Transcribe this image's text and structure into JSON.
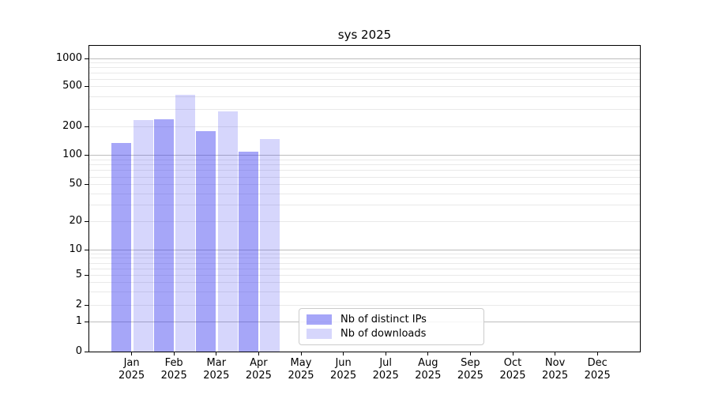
{
  "chart_data": {
    "type": "bar",
    "title": "sys 2025",
    "categories": [
      "Jan 2025",
      "Feb 2025",
      "Mar 2025",
      "Apr 2025",
      "May 2025",
      "Jun 2025",
      "Jul 2025",
      "Aug 2025",
      "Sep 2025",
      "Oct 2025",
      "Nov 2025",
      "Dec 2025"
    ],
    "series": [
      {
        "name": "Nb of distinct IPs",
        "color": "rgba(62,62,240,0.46)",
        "values": [
          134,
          236,
          178,
          109,
          null,
          null,
          null,
          null,
          null,
          null,
          null,
          null
        ]
      },
      {
        "name": "Nb of downloads",
        "color": "rgba(62,62,240,0.21)",
        "values": [
          230,
          410,
          283,
          148,
          null,
          null,
          null,
          null,
          null,
          null,
          null,
          null
        ]
      }
    ],
    "yscale": "symlog (logarithmic above 1, linear 0-1)",
    "yticks": [
      0,
      1,
      2,
      5,
      10,
      20,
      50,
      100,
      200,
      500,
      1000
    ],
    "ylim": [
      0,
      1400
    ],
    "xlabel": "",
    "ylabel": "",
    "grid": "horizontal major (powers of 10) and minor (2-9 per decade)",
    "legend_position": "inside, lower center",
    "colors": {
      "major_grid": "#bdbdbd",
      "minor_grid": "#e9e9e9",
      "axis": "#000000"
    }
  }
}
